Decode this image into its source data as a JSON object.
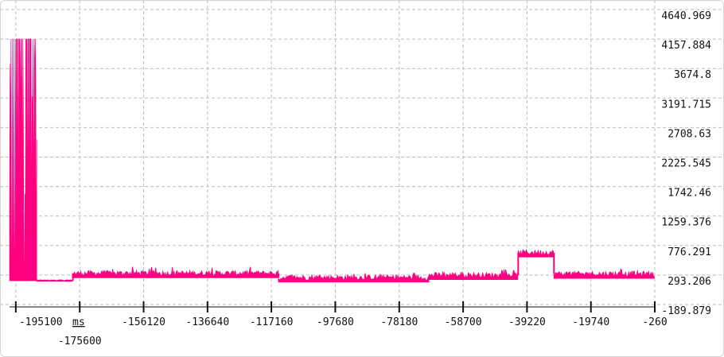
{
  "chart_data": {
    "type": "line",
    "xlabel": "ms",
    "ylabel": "",
    "grid": true,
    "xlim": [
      -197000,
      -260
    ],
    "ylim": [
      -189.879,
      4640.969
    ],
    "x_ticks": [
      {
        "value": -195100,
        "label": "-195100",
        "row": 0
      },
      {
        "value": -175600,
        "label": "-175600",
        "row": 1
      },
      {
        "value": -156120,
        "label": "-156120",
        "row": 0
      },
      {
        "value": -136640,
        "label": "-136640",
        "row": 0
      },
      {
        "value": -117160,
        "label": "-117160",
        "row": 0
      },
      {
        "value": -97680,
        "label": "-97680",
        "row": 0
      },
      {
        "value": -78180,
        "label": "-78180",
        "row": 0
      },
      {
        "value": -58700,
        "label": "-58700",
        "row": 0
      },
      {
        "value": -39220,
        "label": "-39220",
        "row": 0
      },
      {
        "value": -19740,
        "label": "-19740",
        "row": 0
      },
      {
        "value": -260,
        "label": "-260",
        "row": 0
      }
    ],
    "y_ticks": [
      {
        "value": 4640.969,
        "label": "4640.969"
      },
      {
        "value": 4157.884,
        "label": "4157.884"
      },
      {
        "value": 3674.8,
        "label": "3674.8"
      },
      {
        "value": 3191.715,
        "label": "3191.715"
      },
      {
        "value": 2708.63,
        "label": "2708.63"
      },
      {
        "value": 2225.545,
        "label": "2225.545"
      },
      {
        "value": 1742.46,
        "label": "1742.46"
      },
      {
        "value": 1259.376,
        "label": "1259.376"
      },
      {
        "value": 776.291,
        "label": "776.291"
      },
      {
        "value": 293.206,
        "label": "293.206"
      },
      {
        "value": -189.879,
        "label": "-189.879"
      }
    ],
    "series": [
      {
        "color": "#ff0080",
        "segments": [
          {
            "x_start": -197000,
            "x_end": -188700,
            "base": 200,
            "spike_max": 4157.884,
            "mode": "spiky"
          },
          {
            "x_start": -188700,
            "x_end": -177700,
            "base": 200,
            "spike_max": 215,
            "mode": "flat"
          },
          {
            "x_start": -177700,
            "x_end": -115000,
            "base": 320,
            "spike_max": 430,
            "mode": "noisy"
          },
          {
            "x_start": -115000,
            "x_end": -69000,
            "base": 250,
            "spike_max": 330,
            "mode": "noisy"
          },
          {
            "x_start": -69000,
            "x_end": -41900,
            "base": 290,
            "spike_max": 390,
            "mode": "noisy"
          },
          {
            "x_start": -41900,
            "x_end": -31000,
            "base": 660,
            "spike_max": 780,
            "mode": "high"
          },
          {
            "x_start": -31000,
            "x_end": -260,
            "base": 310,
            "spike_max": 420,
            "mode": "noisy"
          }
        ]
      }
    ]
  }
}
